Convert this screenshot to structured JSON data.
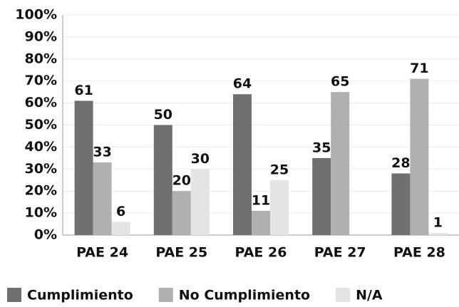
{
  "chart_data": {
    "type": "bar",
    "categories": [
      "PAE 24",
      "PAE 25",
      "PAE 26",
      "PAE 27",
      "PAE 28"
    ],
    "series": [
      {
        "name": "Cumplimiento",
        "color": "#707070",
        "values": [
          61,
          50,
          64,
          35,
          28
        ]
      },
      {
        "name": "No Cumplimiento",
        "color": "#b0b0b0",
        "values": [
          33,
          20,
          11,
          65,
          71
        ]
      },
      {
        "name": "N/A",
        "color": "#e4e4e4",
        "values": [
          6,
          30,
          25,
          null,
          1
        ]
      }
    ],
    "ylim": [
      0,
      100
    ],
    "yticks": [
      {
        "value": 0,
        "label": "0%"
      },
      {
        "value": 10,
        "label": "10%"
      },
      {
        "value": 20,
        "label": "20%"
      },
      {
        "value": 30,
        "label": "30%"
      },
      {
        "value": 40,
        "label": "40%"
      },
      {
        "value": 50,
        "label": "50%"
      },
      {
        "value": 60,
        "label": "60%"
      },
      {
        "value": 70,
        "label": "70%"
      },
      {
        "value": 80,
        "label": "80%"
      },
      {
        "value": 90,
        "label": "90%"
      },
      {
        "value": 100,
        "label": "100%"
      }
    ],
    "grid": true,
    "legend": "bottom"
  }
}
